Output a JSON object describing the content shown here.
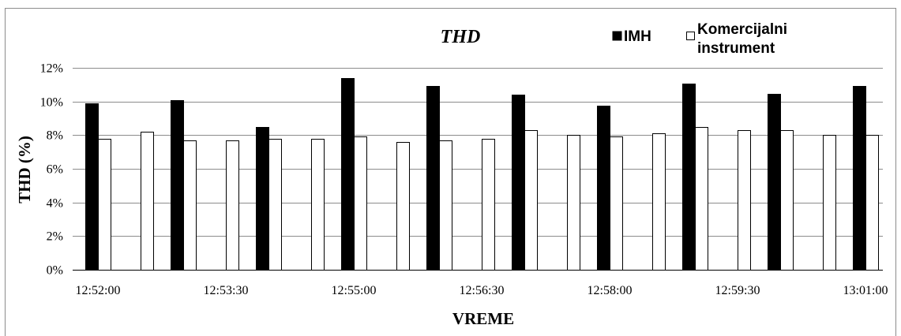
{
  "chart_data": {
    "type": "bar",
    "title": "THD",
    "xlabel": "VREME",
    "ylabel": "THD (%)",
    "ylim": [
      0,
      12
    ],
    "yticks": [
      "0%",
      "2%",
      "4%",
      "6%",
      "8%",
      "10%",
      "12%"
    ],
    "x_tick_labels": [
      "12:52:00",
      "12:53:30",
      "12:55:00",
      "12:56:30",
      "12:58:00",
      "12:59:30",
      "13:01:00"
    ],
    "x_range": [
      "12:52:00",
      "13:01:00"
    ],
    "grid": "horizontal",
    "legend": {
      "placement": "top-right",
      "entries": [
        "IMH",
        "Komercijalni",
        "instrument"
      ]
    },
    "series": [
      {
        "name": "IMH",
        "color": "#000000",
        "points": [
          {
            "time": "12:52:00",
            "value": 9.9
          },
          {
            "time": "12:53:00",
            "value": 10.1
          },
          {
            "time": "12:54:00",
            "value": 8.5
          },
          {
            "time": "12:55:00",
            "value": 11.4
          },
          {
            "time": "12:56:00",
            "value": 10.9
          },
          {
            "time": "12:57:00",
            "value": 10.4
          },
          {
            "time": "12:58:00",
            "value": 9.75
          },
          {
            "time": "12:59:00",
            "value": 11.05
          },
          {
            "time": "13:00:00",
            "value": 10.45
          },
          {
            "time": "13:01:00",
            "value": 10.9
          }
        ]
      },
      {
        "name": "Komercijalni instrument",
        "color": "#ffffff",
        "points": [
          {
            "time": "12:52:00",
            "value": 7.8
          },
          {
            "time": "12:52:30",
            "value": 8.2
          },
          {
            "time": "12:53:00",
            "value": 7.7
          },
          {
            "time": "12:53:30",
            "value": 7.7
          },
          {
            "time": "12:54:00",
            "value": 7.8
          },
          {
            "time": "12:54:30",
            "value": 7.8
          },
          {
            "time": "12:55:00",
            "value": 7.9
          },
          {
            "time": "12:55:30",
            "value": 7.6
          },
          {
            "time": "12:56:00",
            "value": 7.7
          },
          {
            "time": "12:56:30",
            "value": 7.8
          },
          {
            "time": "12:57:00",
            "value": 8.3
          },
          {
            "time": "12:57:30",
            "value": 8.0
          },
          {
            "time": "12:58:00",
            "value": 7.9
          },
          {
            "time": "12:58:30",
            "value": 8.1
          },
          {
            "time": "12:59:00",
            "value": 8.5
          },
          {
            "time": "12:59:30",
            "value": 8.3
          },
          {
            "time": "13:00:00",
            "value": 8.3
          },
          {
            "time": "13:00:30",
            "value": 8.0
          },
          {
            "time": "13:01:00",
            "value": 8.0
          }
        ]
      }
    ]
  }
}
